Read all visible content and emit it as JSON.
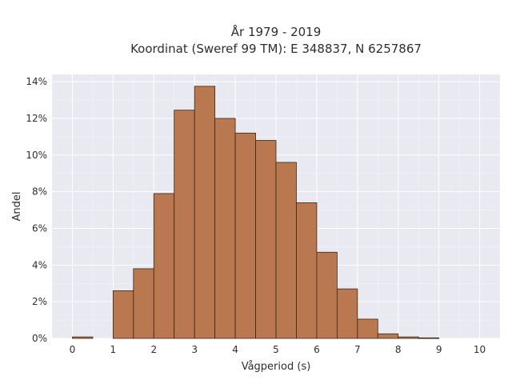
{
  "chart_data": {
    "type": "bar",
    "title_line1": "År 1979 - 2019",
    "title_line2": "Koordinat (Sweref 99 TM): E 348837, N 6257867",
    "xlabel": "Vågperiod (s)",
    "ylabel": "Andel",
    "bin_width": 0.5,
    "bins": [
      {
        "x0": 0.0,
        "value": 0.08
      },
      {
        "x0": 0.5,
        "value": 0.0
      },
      {
        "x0": 1.0,
        "value": 2.6
      },
      {
        "x0": 1.5,
        "value": 3.8
      },
      {
        "x0": 2.0,
        "value": 7.9
      },
      {
        "x0": 2.5,
        "value": 12.45
      },
      {
        "x0": 3.0,
        "value": 13.75
      },
      {
        "x0": 3.5,
        "value": 12.0
      },
      {
        "x0": 4.0,
        "value": 11.2
      },
      {
        "x0": 4.5,
        "value": 10.8
      },
      {
        "x0": 5.0,
        "value": 9.6
      },
      {
        "x0": 5.5,
        "value": 7.4
      },
      {
        "x0": 6.0,
        "value": 4.7
      },
      {
        "x0": 6.5,
        "value": 2.7
      },
      {
        "x0": 7.0,
        "value": 1.05
      },
      {
        "x0": 7.5,
        "value": 0.25
      },
      {
        "x0": 8.0,
        "value": 0.08
      },
      {
        "x0": 8.5,
        "value": 0.03
      }
    ],
    "xlim": [
      -0.5,
      10.5
    ],
    "ylim": [
      0,
      14.4
    ],
    "xticks": [
      0,
      1,
      2,
      3,
      4,
      5,
      6,
      7,
      8,
      9,
      10
    ],
    "yticks": [
      0,
      2,
      4,
      6,
      8,
      10,
      12,
      14
    ],
    "ytick_suffix": "%",
    "bar_color": "#b9784f",
    "background_color": "#e8e9f1",
    "grid": true
  }
}
